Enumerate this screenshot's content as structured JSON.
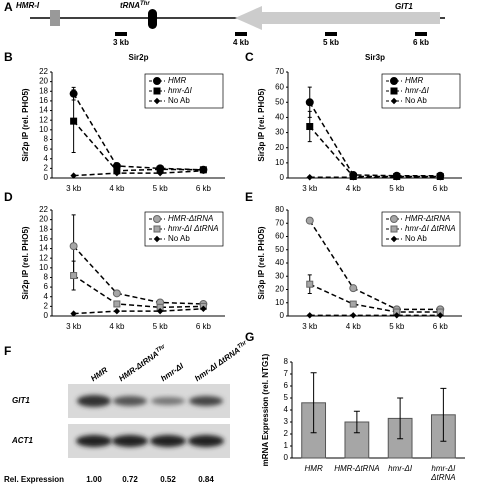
{
  "diagram": {
    "panel": "A",
    "hmr_i": "HMR-I",
    "trna": {
      "text": "tRNA",
      "sup": "Thr"
    },
    "git1": "GIT1",
    "scale": [
      "3 kb",
      "4 kb",
      "5 kb",
      "6 kb"
    ]
  },
  "blot": {
    "panel": "F",
    "lanes": [
      {
        "text": "HMR"
      },
      {
        "text": "HMR-ΔtRNA",
        "sup": "Thr"
      },
      {
        "text": "hmr-ΔI"
      },
      {
        "text": "hmr-ΔI ΔtRNA",
        "sup": "Thr"
      }
    ],
    "rows": [
      "GIT1",
      "ACT1"
    ],
    "expression_label": "Rel. Expression",
    "expression": [
      "1.00",
      "0.72",
      "0.52",
      "0.84"
    ]
  },
  "chart_data": [
    {
      "type": "line",
      "panel": "B",
      "title": "Sir2p",
      "y_label": "Sir2p IP (rel. PHO5)",
      "categories": [
        "3 kb",
        "4 kb",
        "5 kb",
        "6 kb"
      ],
      "ylim": [
        0,
        22
      ],
      "yticks": [
        0,
        2,
        4,
        6,
        8,
        10,
        12,
        14,
        16,
        18,
        20,
        22
      ],
      "series": [
        {
          "name": "HMR",
          "color": "#000000",
          "marker": "circle",
          "values": [
            17.5,
            2.5,
            2,
            1.7
          ],
          "errors": [
            1.3,
            0.3,
            0.2,
            0.2
          ]
        },
        {
          "name": "hmr-ΔI",
          "color": "#000000",
          "marker": "square",
          "values": [
            11.8,
            1.5,
            1.8,
            1.7
          ],
          "errors": [
            6.5,
            0.3,
            0.2,
            0.2
          ]
        },
        {
          "name": "No Ab",
          "color": "#000000",
          "marker": "diamond",
          "values": [
            0.5,
            1,
            1,
            1.5
          ]
        }
      ]
    },
    {
      "type": "line",
      "panel": "C",
      "title": "Sir3p",
      "y_label": "Sir3p IP (rel. PHO5)",
      "categories": [
        "3 kb",
        "4 kb",
        "5 kb",
        "6 kb"
      ],
      "ylim": [
        0,
        70
      ],
      "yticks": [
        0,
        10,
        20,
        30,
        40,
        50,
        60,
        70
      ],
      "series": [
        {
          "name": "HMR",
          "color": "#000000",
          "marker": "circle",
          "values": [
            50,
            2,
            1.5,
            1.5
          ],
          "errors": [
            10,
            0.5,
            0.3,
            0.3
          ]
        },
        {
          "name": "hmr-ΔI",
          "color": "#000000",
          "marker": "square",
          "values": [
            34,
            1,
            1,
            1
          ],
          "errors": [
            10,
            0.3,
            0.3,
            0.3
          ]
        },
        {
          "name": "No Ab",
          "color": "#000000",
          "marker": "diamond",
          "values": [
            0.5,
            0.5,
            0.5,
            0.5
          ]
        }
      ]
    },
    {
      "type": "line",
      "panel": "D",
      "y_label": "Sir2p IP (rel. PHO5)",
      "categories": [
        "3 kb",
        "4 kb",
        "5 kb",
        "6 kb"
      ],
      "ylim": [
        0,
        22
      ],
      "yticks": [
        0,
        2,
        4,
        6,
        8,
        10,
        12,
        14,
        16,
        18,
        20,
        22
      ],
      "series": [
        {
          "name": "HMR-ΔtRNA",
          "color": "#a6a6a6",
          "marker": "circle",
          "values": [
            14.5,
            4.7,
            2.8,
            2.5
          ],
          "errors": [
            6.5,
            0.4,
            0.4,
            0.3
          ]
        },
        {
          "name": "hmr-ΔI ΔtRNA",
          "color": "#a6a6a6",
          "marker": "square",
          "values": [
            8.4,
            2.5,
            1.8,
            2
          ],
          "errors": [
            3,
            0.3,
            0.3,
            0.3
          ]
        },
        {
          "name": "No Ab",
          "color": "#000000",
          "marker": "diamond",
          "values": [
            0.5,
            1,
            1,
            1.5
          ]
        }
      ]
    },
    {
      "type": "line",
      "panel": "E",
      "y_label": "Sir3p IP (rel. PHO5)",
      "categories": [
        "3 kb",
        "4 kb",
        "5 kb",
        "6 kb"
      ],
      "ylim": [
        0,
        80
      ],
      "yticks": [
        0,
        10,
        20,
        30,
        40,
        50,
        60,
        70,
        80
      ],
      "series": [
        {
          "name": "HMR-ΔtRNA",
          "color": "#a6a6a6",
          "marker": "circle",
          "values": [
            72,
            21,
            5,
            5
          ],
          "errors": [
            2,
            1,
            0.5,
            0.5
          ]
        },
        {
          "name": "hmr-ΔI ΔtRNA",
          "color": "#a6a6a6",
          "marker": "square",
          "values": [
            24,
            9,
            3,
            3
          ],
          "errors": [
            7,
            1,
            0.5,
            0.5
          ]
        },
        {
          "name": "No Ab",
          "color": "#000000",
          "marker": "diamond",
          "values": [
            0.5,
            0.5,
            0.5,
            0.5
          ]
        }
      ]
    },
    {
      "type": "bar",
      "panel": "G",
      "y_label": "mRNA Expression (rel. NTG1)",
      "categories": [
        "HMR",
        "HMR-ΔtRNA",
        "hmr-ΔI",
        [
          "hmr-ΔI",
          "ΔtRNA"
        ]
      ],
      "ylim": [
        0,
        8
      ],
      "yticks": [
        0,
        1,
        2,
        3,
        4,
        5,
        6,
        7,
        8
      ],
      "color": "#a6a6a6",
      "values": [
        4.6,
        3.0,
        3.3,
        3.6
      ],
      "errors": [
        2.5,
        0.9,
        1.7,
        2.2
      ]
    }
  ]
}
